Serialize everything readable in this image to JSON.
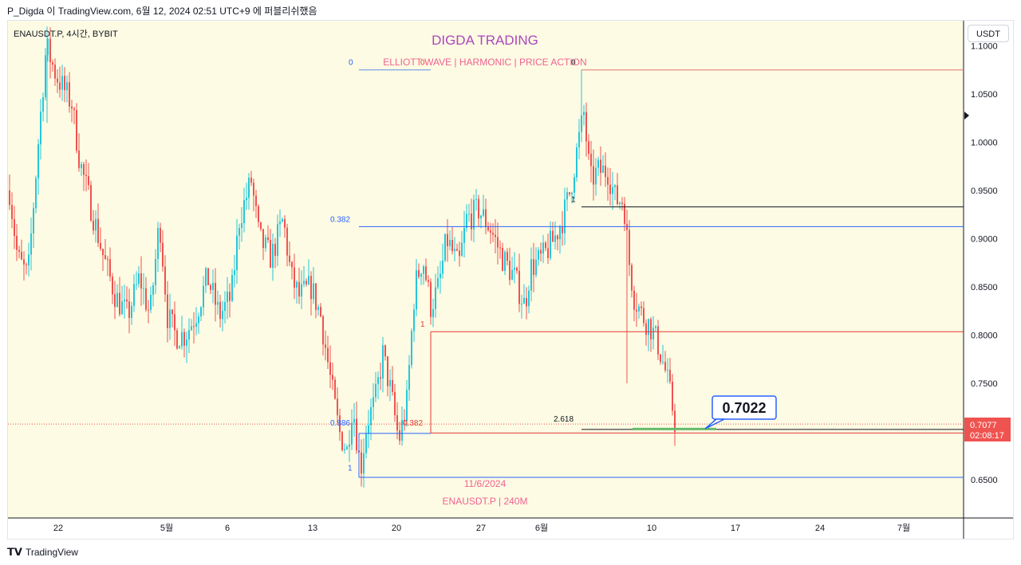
{
  "header": {
    "title": "P_Digda 이 TradingView.com, 6월 12, 2024 02:51 UTC+9 에 퍼블리쉬했음"
  },
  "symbol_line": "ENAUSDT.P, 4시간, BYBIT",
  "currency_button": "USDT",
  "branding": {
    "title": "DIGDA TRADING",
    "subtitle": "ELLIOTT WAVE  |  HARMONIC  |  PRICE ACTION",
    "date_label": "11/6/2024",
    "pair_label": "ENAUSDT.P | 240M"
  },
  "callout": "0.7022",
  "price_label": {
    "value": "0.7077",
    "countdown": "02:08:17"
  },
  "footer": {
    "logo_text": "TradingView"
  },
  "colors": {
    "bull": "#26c6da",
    "bear": "#ef5350",
    "fib_blue": "#2962ff",
    "fib_red": "#e53935",
    "background": "#fdfbe3",
    "brand_purple": "#ab47bc",
    "brand_pink": "#f06292"
  },
  "chart_data": {
    "type": "candlestick",
    "y_ticks": [
      "1.1000",
      "1.0500",
      "1.0000",
      "0.9500",
      "0.9000",
      "0.8500",
      "0.8000",
      "0.7500",
      "0.6500"
    ],
    "x_ticks": [
      "22",
      "5월",
      "6",
      "13",
      "20",
      "27",
      "6월",
      "10",
      "17",
      "24",
      "7월"
    ],
    "ylim": [
      0.625,
      1.11
    ],
    "fib_levels": [
      {
        "label_left": "0",
        "label_right": "0",
        "price": 1.075,
        "color": "fib_red_line"
      },
      {
        "label_left": "0.382",
        "price": 0.9125,
        "color": "fib_blue"
      },
      {
        "label_left": "1",
        "price": 0.933,
        "color": "black"
      },
      {
        "label_left": "1",
        "price": 0.8035,
        "color": "fib_red"
      },
      {
        "label_left": "0.886",
        "label_right": "0.382",
        "price": 0.698,
        "color": "fib_blue"
      },
      {
        "label_left": "2.618",
        "price": 0.7022,
        "color": "black"
      },
      {
        "label_left": "1",
        "price": 0.6525,
        "color": "fib_blue"
      }
    ],
    "key_prices": {
      "start": 0.95,
      "high_early": 1.12,
      "low_mid": 0.67,
      "high_late": 1.075,
      "current": 0.7077,
      "target": 0.7022
    }
  }
}
